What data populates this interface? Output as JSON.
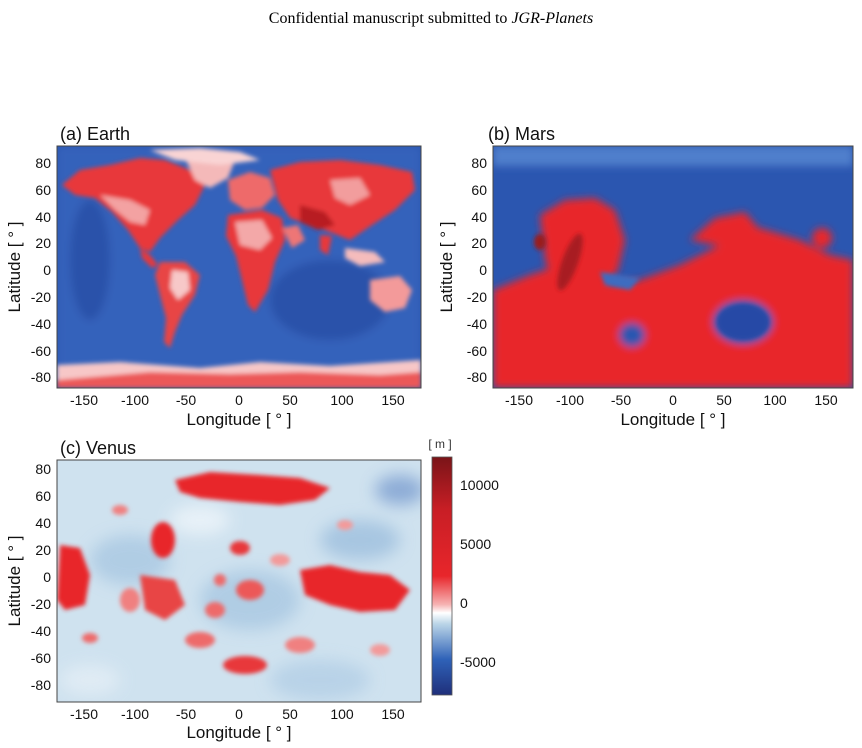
{
  "header": {
    "text_before": "Confidential manuscript submitted to ",
    "journal": "JGR-Planets"
  },
  "colors": {
    "deep_blue": "#233a8c",
    "ocean_blue": "#2b56b0",
    "white": "#ffffff",
    "red": "#e8262b",
    "dark_red": "#8c1a1f"
  },
  "panels": [
    {
      "id": "earth",
      "title": "(a) Earth",
      "xlabel": "Longitude [ ° ]",
      "ylabel": "Latitude [ ° ]",
      "xticks": [
        "-150",
        "-100",
        "-50",
        "0",
        "50",
        "100",
        "150"
      ],
      "yticks": [
        "80",
        "60",
        "40",
        "20",
        "0",
        "-20",
        "-40",
        "-60",
        "-80"
      ]
    },
    {
      "id": "mars",
      "title": "(b) Mars",
      "xlabel": "Longitude [ ° ]",
      "ylabel": "Latitude [ ° ]",
      "xticks": [
        "-150",
        "-100",
        "-50",
        "0",
        "50",
        "100",
        "150"
      ],
      "yticks": [
        "80",
        "60",
        "40",
        "20",
        "0",
        "-20",
        "-40",
        "-60",
        "-80"
      ]
    },
    {
      "id": "venus",
      "title": "(c) Venus",
      "xlabel": "Longitude [ ° ]",
      "ylabel": "Latitude [ ° ]",
      "xticks": [
        "-150",
        "-100",
        "-50",
        "0",
        "50",
        "100",
        "150"
      ],
      "yticks": [
        "80",
        "60",
        "40",
        "20",
        "0",
        "-20",
        "-40",
        "-60",
        "-80"
      ]
    }
  ],
  "colorbar": {
    "unit": "[ m ]",
    "ticks": [
      "10000",
      "5000",
      "0",
      "-5000"
    ]
  }
}
